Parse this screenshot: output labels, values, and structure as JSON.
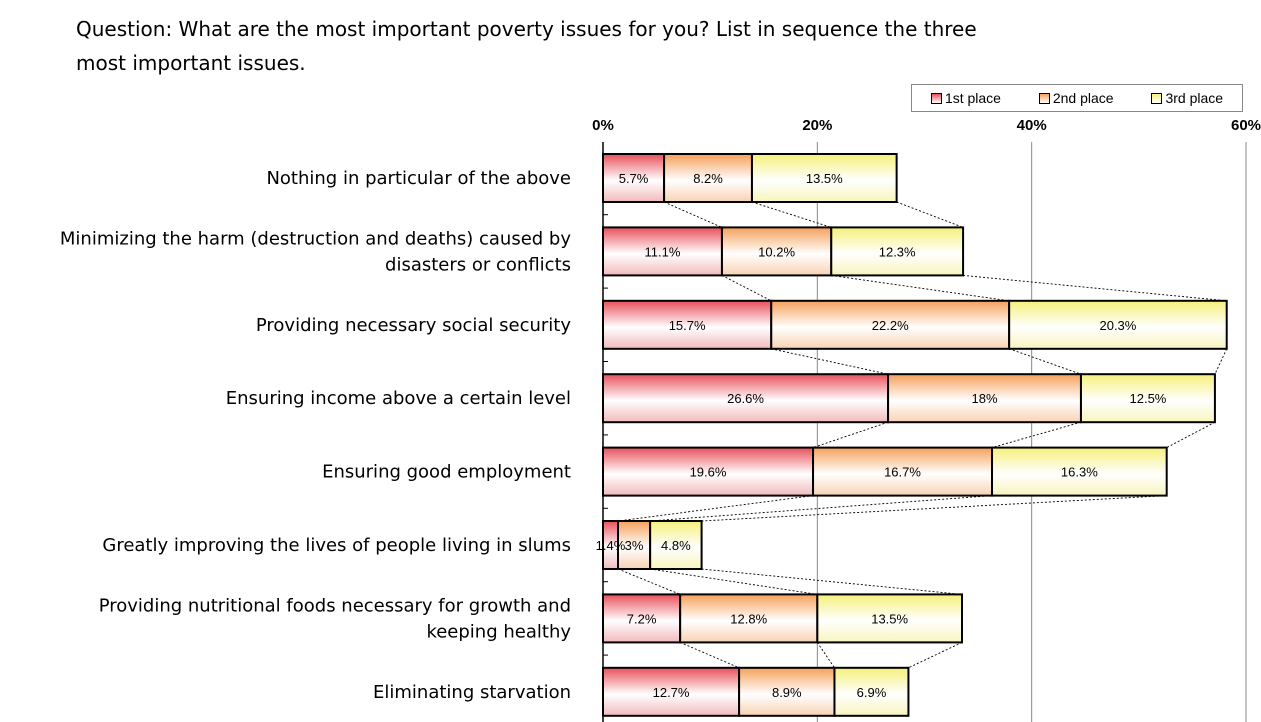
{
  "question": {
    "line1": "Question: What are the most important poverty issues for you? List in sequence the three",
    "line2": "most important issues."
  },
  "legend": [
    {
      "label": "1st place",
      "color": "#e8505a"
    },
    {
      "label": "2nd place",
      "color": "#f5a05a"
    },
    {
      "label": "3rd place",
      "color": "#f5f07a"
    }
  ],
  "chart_data": {
    "type": "bar",
    "orientation": "horizontal",
    "stacked": true,
    "categories": [
      "Nothing in particular of the above",
      "Minimizing the harm (destruction and deaths) caused by disasters or conflicts",
      "Providing necessary social security",
      "Ensuring income above a certain level",
      "Ensuring good employment",
      "Greatly improving the lives of people living in slums",
      "Providing nutritional foods necessary for growth and keeping  healthy",
      "Eliminating starvation"
    ],
    "category_lines": [
      [
        "Nothing in particular of the above"
      ],
      [
        "Minimizing the harm (destruction and deaths) caused by",
        "disasters or conflicts"
      ],
      [
        "Providing necessary social security"
      ],
      [
        "Ensuring income above a certain level"
      ],
      [
        "Ensuring good employment"
      ],
      [
        "Greatly improving the lives of people living in slums"
      ],
      [
        "Providing nutritional foods necessary for growth and",
        "keeping  healthy"
      ],
      [
        "Eliminating starvation"
      ]
    ],
    "series": [
      {
        "name": "1st place",
        "values": [
          5.7,
          11.1,
          15.7,
          26.6,
          19.6,
          1.4,
          7.2,
          12.7
        ],
        "labels": [
          "5.7%",
          "11.1%",
          "15.7%",
          "26.6%",
          "19.6%",
          "1.4%",
          "7.2%",
          "12.7%"
        ]
      },
      {
        "name": "2nd place",
        "values": [
          8.2,
          10.2,
          22.2,
          18,
          16.7,
          3,
          12.8,
          8.9
        ],
        "labels": [
          "8.2%",
          "10.2%",
          "22.2%",
          "18%",
          "16.7%",
          "3%",
          "12.8%",
          "8.9%"
        ]
      },
      {
        "name": "3rd place",
        "values": [
          13.5,
          12.3,
          20.3,
          12.5,
          16.3,
          4.8,
          13.5,
          6.9
        ],
        "labels": [
          "13.5%",
          "12.3%",
          "20.3%",
          "12.5%",
          "16.3%",
          "4.8%",
          "13.5%",
          "6.9%"
        ]
      }
    ],
    "xlim": [
      0,
      60
    ],
    "xticks": [
      0,
      20,
      40,
      60
    ],
    "xtick_labels": [
      "0%",
      "20%",
      "40%",
      "60%"
    ],
    "grid": true,
    "series_connector_lines": true,
    "legend_position": "top-right"
  }
}
